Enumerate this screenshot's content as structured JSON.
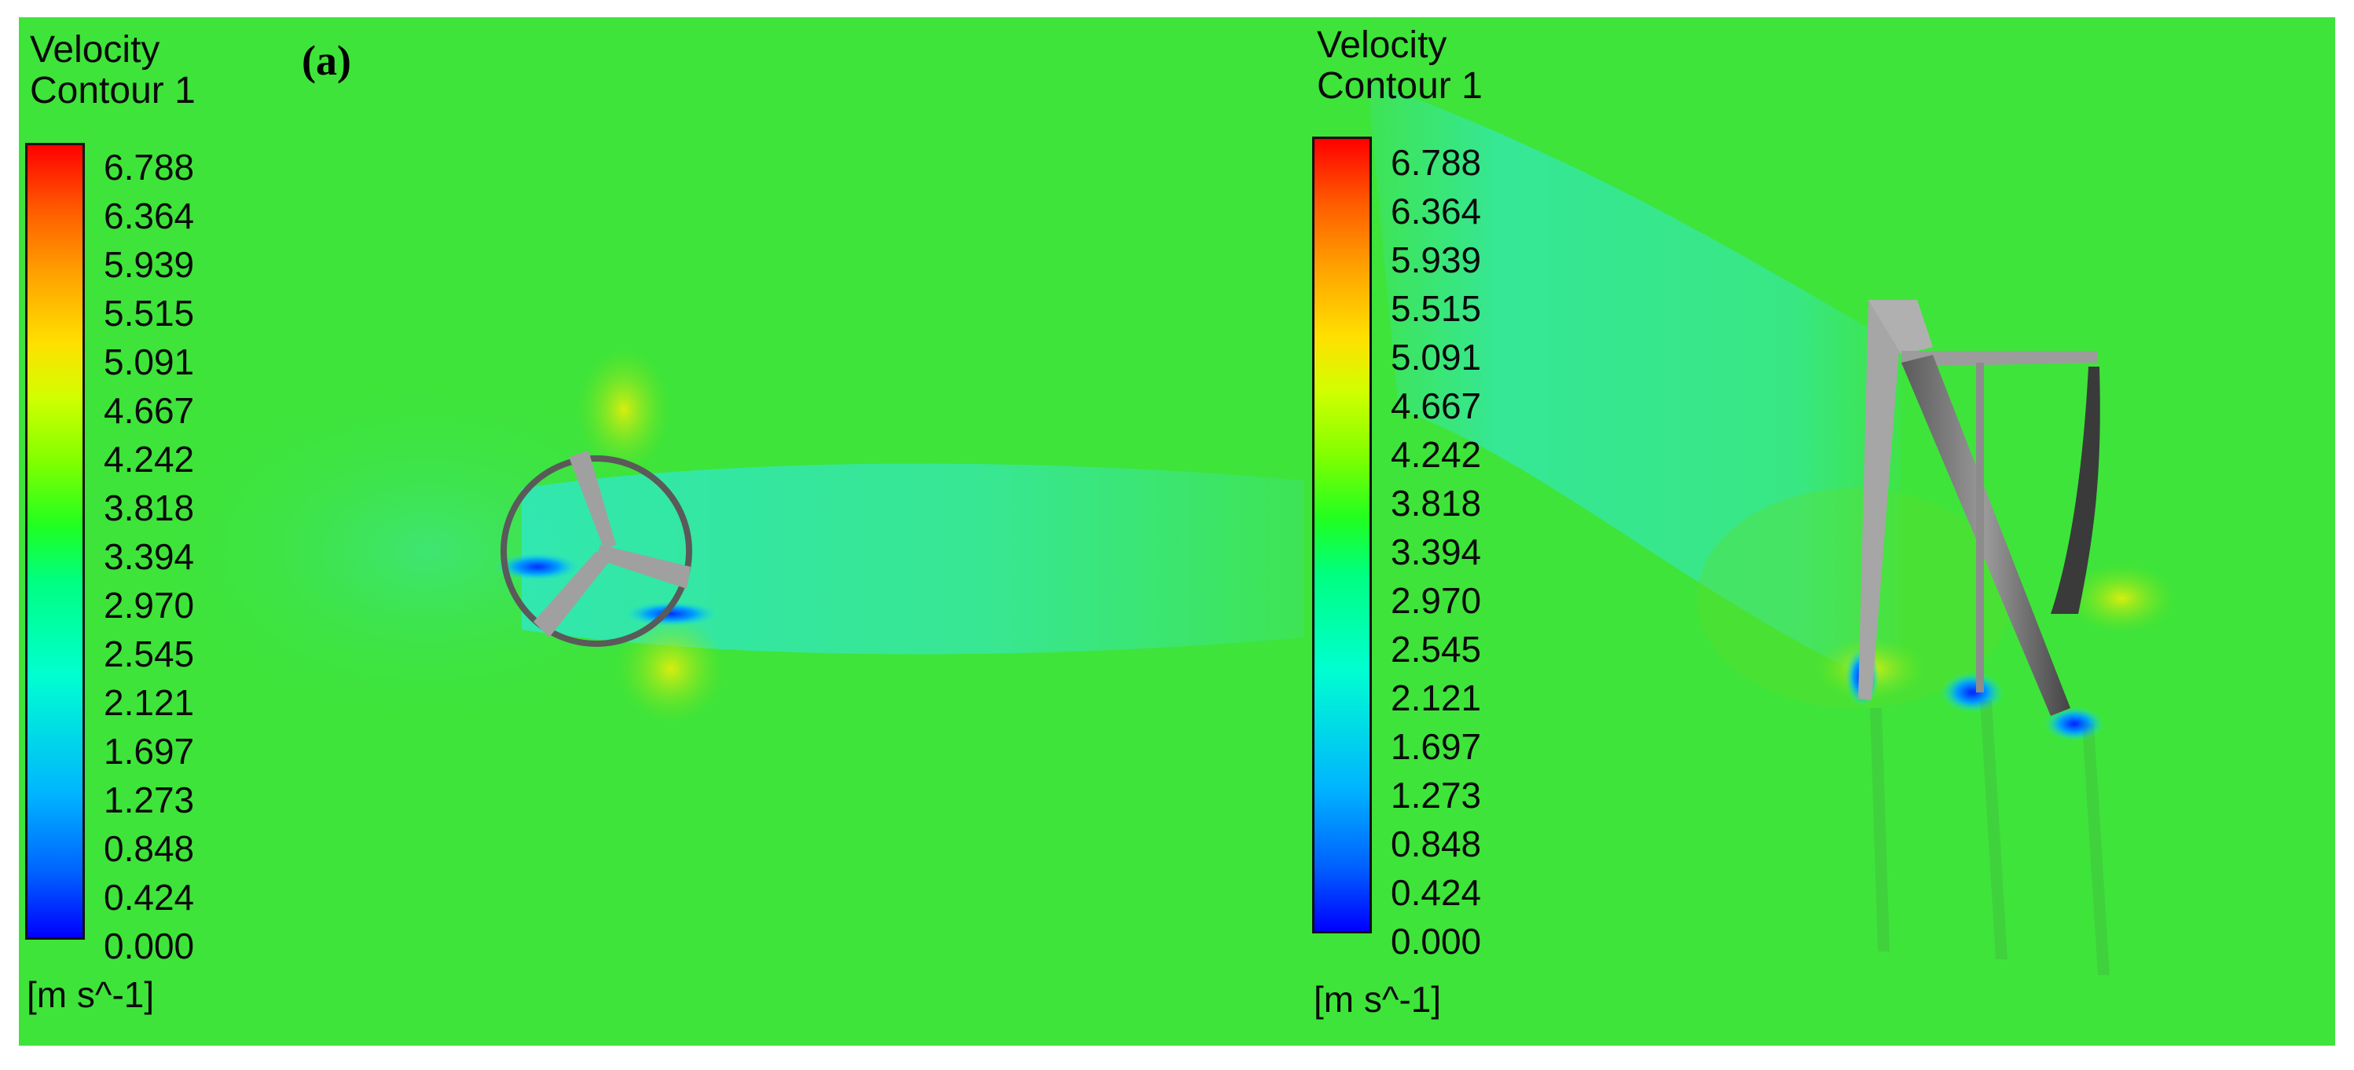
{
  "panels": [
    {
      "letter": "(a)",
      "legend": {
        "title_line1": "Velocity",
        "title_line2": "Contour 1",
        "ticks": [
          "6.788",
          "6.364",
          "5.939",
          "5.515",
          "5.091",
          "4.667",
          "4.242",
          "3.818",
          "3.394",
          "2.970",
          "2.545",
          "2.121",
          "1.697",
          "1.273",
          "0.848",
          "0.424",
          "0.000"
        ],
        "unit": "[m s^-1]"
      }
    },
    {
      "legend": {
        "title_line1": "Velocity",
        "title_line2": "Contour 1",
        "ticks": [
          "6.788",
          "6.364",
          "5.939",
          "5.515",
          "5.091",
          "4.667",
          "4.242",
          "3.818",
          "3.394",
          "2.970",
          "2.545",
          "2.121",
          "1.697",
          "1.273",
          "0.848",
          "0.424",
          "0.000"
        ],
        "unit": "[m s^-1]"
      }
    }
  ],
  "colors": {
    "freestream": "#3ee43a",
    "wake": "#35e9a8",
    "low_velocity": "#1533ff",
    "rotor": "#9c9c9c"
  }
}
